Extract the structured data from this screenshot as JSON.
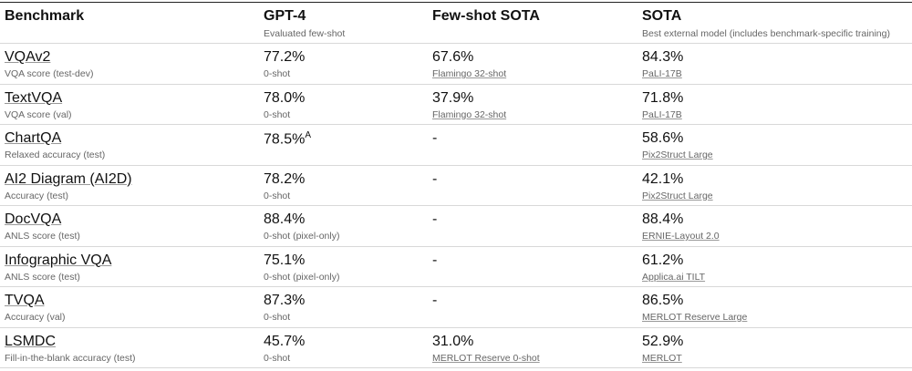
{
  "table": {
    "header": [
      {
        "title": "Benchmark"
      },
      {
        "title": "GPT-4",
        "subtitle": "Evaluated few-shot"
      },
      {
        "title": "Few-shot SOTA"
      },
      {
        "title": "SOTA",
        "subtitle": "Best external model (includes benchmark-specific training)"
      }
    ],
    "rows": [
      [
        {
          "text": "VQAv2",
          "note": "VQA score (test-dev)"
        },
        {
          "text": "77.2%",
          "note": "0-shot"
        },
        {
          "text": "67.6%",
          "note": "Flamingo 32-shot"
        },
        {
          "text": "84.3%",
          "note": "PaLI-17B"
        }
      ],
      [
        {
          "text": "TextVQA",
          "note": "VQA score (val)"
        },
        {
          "text": "78.0%",
          "note": "0-shot"
        },
        {
          "text": "37.9%",
          "note": "Flamingo 32-shot"
        },
        {
          "text": "71.8%",
          "note": "PaLI-17B"
        }
      ],
      [
        {
          "text": "ChartQA",
          "note": "Relaxed accuracy (test)"
        },
        {
          "text": "78.5%",
          "sup": "A"
        },
        {
          "text": "-"
        },
        {
          "text": "58.6%",
          "note": "Pix2Struct Large"
        }
      ],
      [
        {
          "text": "AI2 Diagram (AI2D)",
          "note": "Accuracy (test)"
        },
        {
          "text": "78.2%",
          "note": "0-shot"
        },
        {
          "text": "-"
        },
        {
          "text": "42.1%",
          "note": "Pix2Struct Large"
        }
      ],
      [
        {
          "text": "DocVQA",
          "note": "ANLS score (test)"
        },
        {
          "text": "88.4%",
          "note": "0-shot (pixel-only)"
        },
        {
          "text": "-"
        },
        {
          "text": "88.4%",
          "note": "ERNIE-Layout 2.0"
        }
      ],
      [
        {
          "text": "Infographic VQA",
          "note": "ANLS score (test)"
        },
        {
          "text": "75.1%",
          "note": "0-shot (pixel-only)"
        },
        {
          "text": "-"
        },
        {
          "text": "61.2%",
          "note": "Applica.ai TILT"
        }
      ],
      [
        {
          "text": "TVQA",
          "note": "Accuracy (val)"
        },
        {
          "text": "87.3%",
          "note": "0-shot"
        },
        {
          "text": "-"
        },
        {
          "text": "86.5%",
          "note": "MERLOT Reserve Large"
        }
      ],
      [
        {
          "text": "LSMDC",
          "note": "Fill-in-the-blank accuracy (test)"
        },
        {
          "text": "45.7%",
          "note": "0-shot"
        },
        {
          "text": "31.0%",
          "note": "MERLOT Reserve 0-shot"
        },
        {
          "text": "52.9%",
          "note": "MERLOT"
        }
      ]
    ]
  }
}
